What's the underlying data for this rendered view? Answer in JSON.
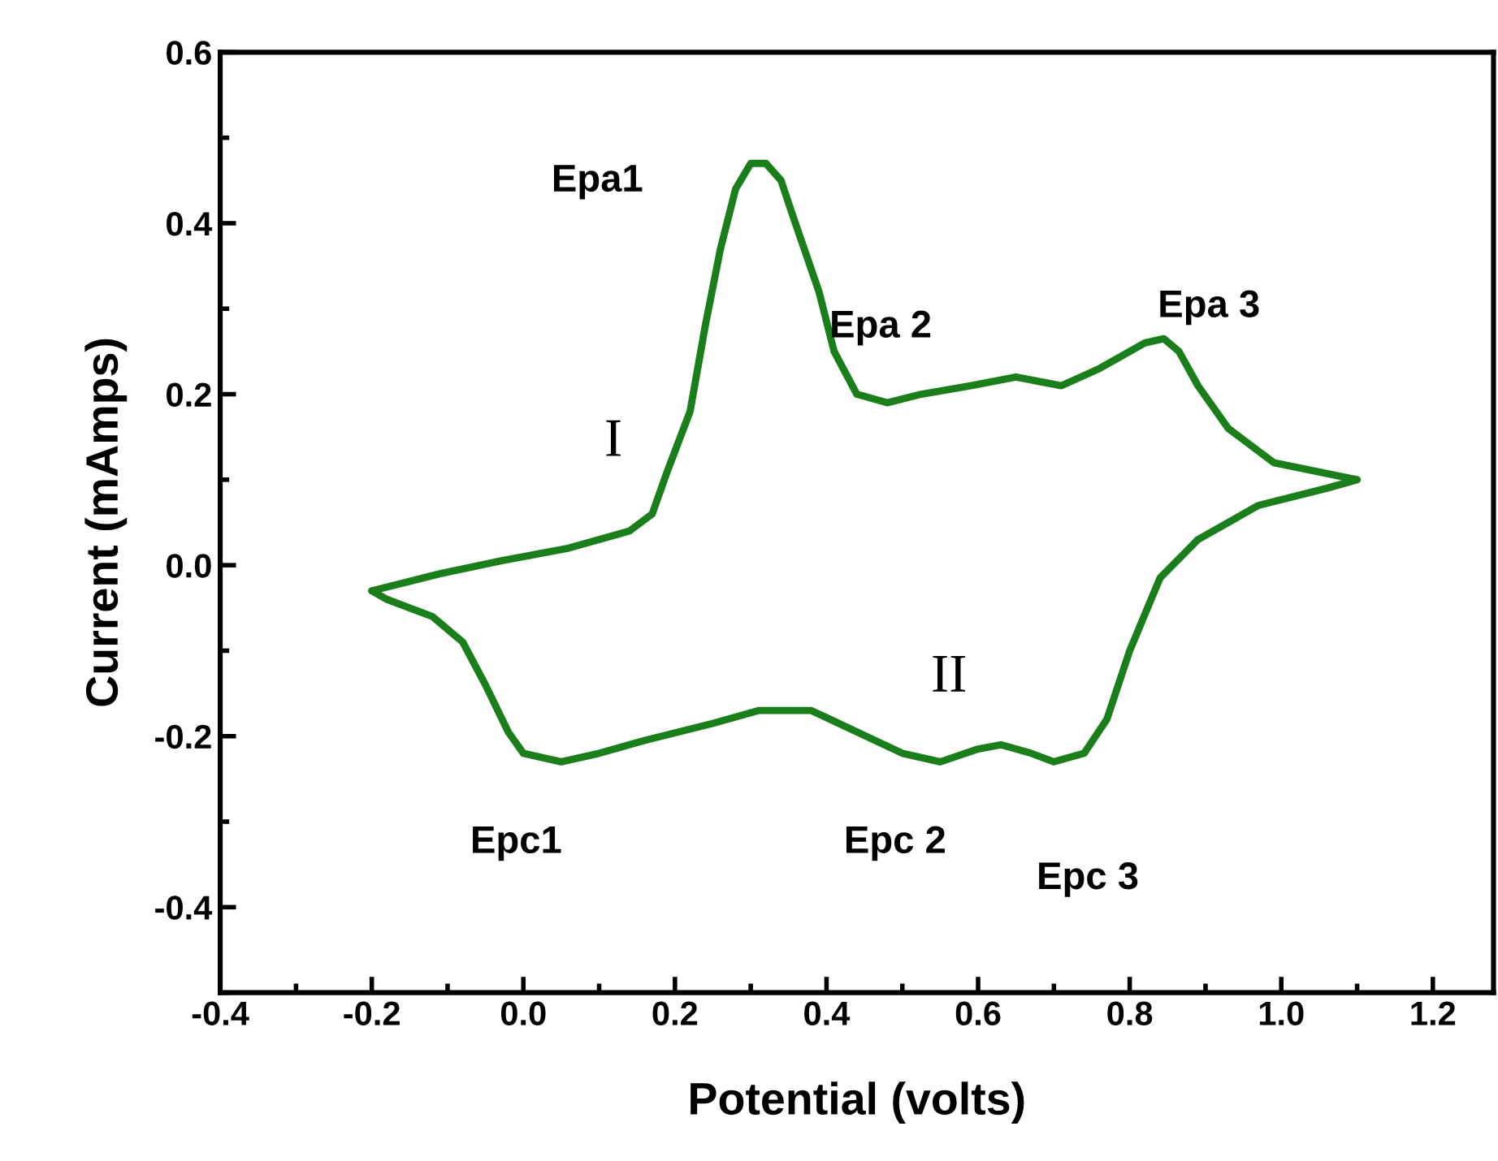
{
  "chart_data": {
    "type": "line",
    "xlabel": "Potential (volts)",
    "ylabel": "Current (mAmps)",
    "xlim": [
      -0.4,
      1.28
    ],
    "ylim": [
      -0.5,
      0.6
    ],
    "xticks": [
      {
        "value": -0.4,
        "label": "-0.4"
      },
      {
        "value": -0.2,
        "label": "-0.2"
      },
      {
        "value": 0.0,
        "label": "0.0"
      },
      {
        "value": 0.2,
        "label": "0.2"
      },
      {
        "value": 0.4,
        "label": "0.4"
      },
      {
        "value": 0.6,
        "label": "0.6"
      },
      {
        "value": 0.8,
        "label": "0.8"
      },
      {
        "value": 1.0,
        "label": "1.0"
      },
      {
        "value": 1.2,
        "label": "1.2"
      }
    ],
    "yticks": [
      {
        "value": -0.4,
        "label": "-0.4"
      },
      {
        "value": -0.2,
        "label": "-0.2"
      },
      {
        "value": 0.0,
        "label": "0.0"
      },
      {
        "value": 0.2,
        "label": "0.2"
      },
      {
        "value": 0.4,
        "label": "0.4"
      },
      {
        "value": 0.6,
        "label": "0.6"
      }
    ],
    "grid": false,
    "legend": false,
    "marker": "none",
    "line_style": "solid",
    "series": [
      {
        "color": "#1a7f1a",
        "x": [
          -0.2,
          -0.11,
          -0.03,
          0.06,
          0.14,
          0.17,
          0.19,
          0.22,
          0.24,
          0.26,
          0.28,
          0.3,
          0.32,
          0.34,
          0.355,
          0.39,
          0.41,
          0.44,
          0.48,
          0.525,
          0.59,
          0.65,
          0.71,
          0.76,
          0.82,
          0.845,
          0.865,
          0.89,
          0.93,
          0.99,
          1.1
        ],
        "values": [
          -0.03,
          -0.01,
          0.005,
          0.02,
          0.04,
          0.06,
          0.11,
          0.18,
          0.28,
          0.37,
          0.44,
          0.47,
          0.47,
          0.45,
          0.41,
          0.32,
          0.25,
          0.2,
          0.19,
          0.2,
          0.21,
          0.22,
          0.21,
          0.23,
          0.26,
          0.265,
          0.25,
          0.21,
          0.16,
          0.12,
          0.1
        ]
      },
      {
        "color": "#1a7f1a",
        "x": [
          -0.2,
          -0.18,
          -0.12,
          -0.08,
          -0.05,
          -0.02,
          0.0,
          0.05,
          0.1,
          0.16,
          0.25,
          0.31,
          0.38,
          0.44,
          0.5,
          0.55,
          0.6,
          0.63,
          0.67,
          0.7,
          0.74,
          0.77,
          0.8,
          0.84,
          0.89,
          0.97,
          1.06,
          1.1
        ],
        "values": [
          -0.03,
          -0.04,
          -0.06,
          -0.09,
          -0.14,
          -0.195,
          -0.22,
          -0.23,
          -0.22,
          -0.205,
          -0.185,
          -0.17,
          -0.17,
          -0.195,
          -0.22,
          -0.23,
          -0.215,
          -0.21,
          -0.22,
          -0.23,
          -0.22,
          -0.18,
          -0.1,
          -0.015,
          0.03,
          0.07,
          0.09,
          0.1
        ]
      }
    ],
    "annotations": [
      {
        "text": "Epa1",
        "x": 0.3,
        "y": 0.47
      },
      {
        "text": "I",
        "x": 0.22,
        "y": 0.18
      },
      {
        "text": "Epa 2",
        "x": 0.65,
        "y": 0.22
      },
      {
        "text": "Epa 3",
        "x": 0.845,
        "y": 0.265
      },
      {
        "text": "II",
        "x": 0.77,
        "y": -0.18
      },
      {
        "text": "Epc1",
        "x": 0.05,
        "y": -0.23
      },
      {
        "text": "Epc 2",
        "x": 0.55,
        "y": -0.23
      },
      {
        "text": "Epc 3",
        "x": 0.7,
        "y": -0.23
      }
    ]
  }
}
